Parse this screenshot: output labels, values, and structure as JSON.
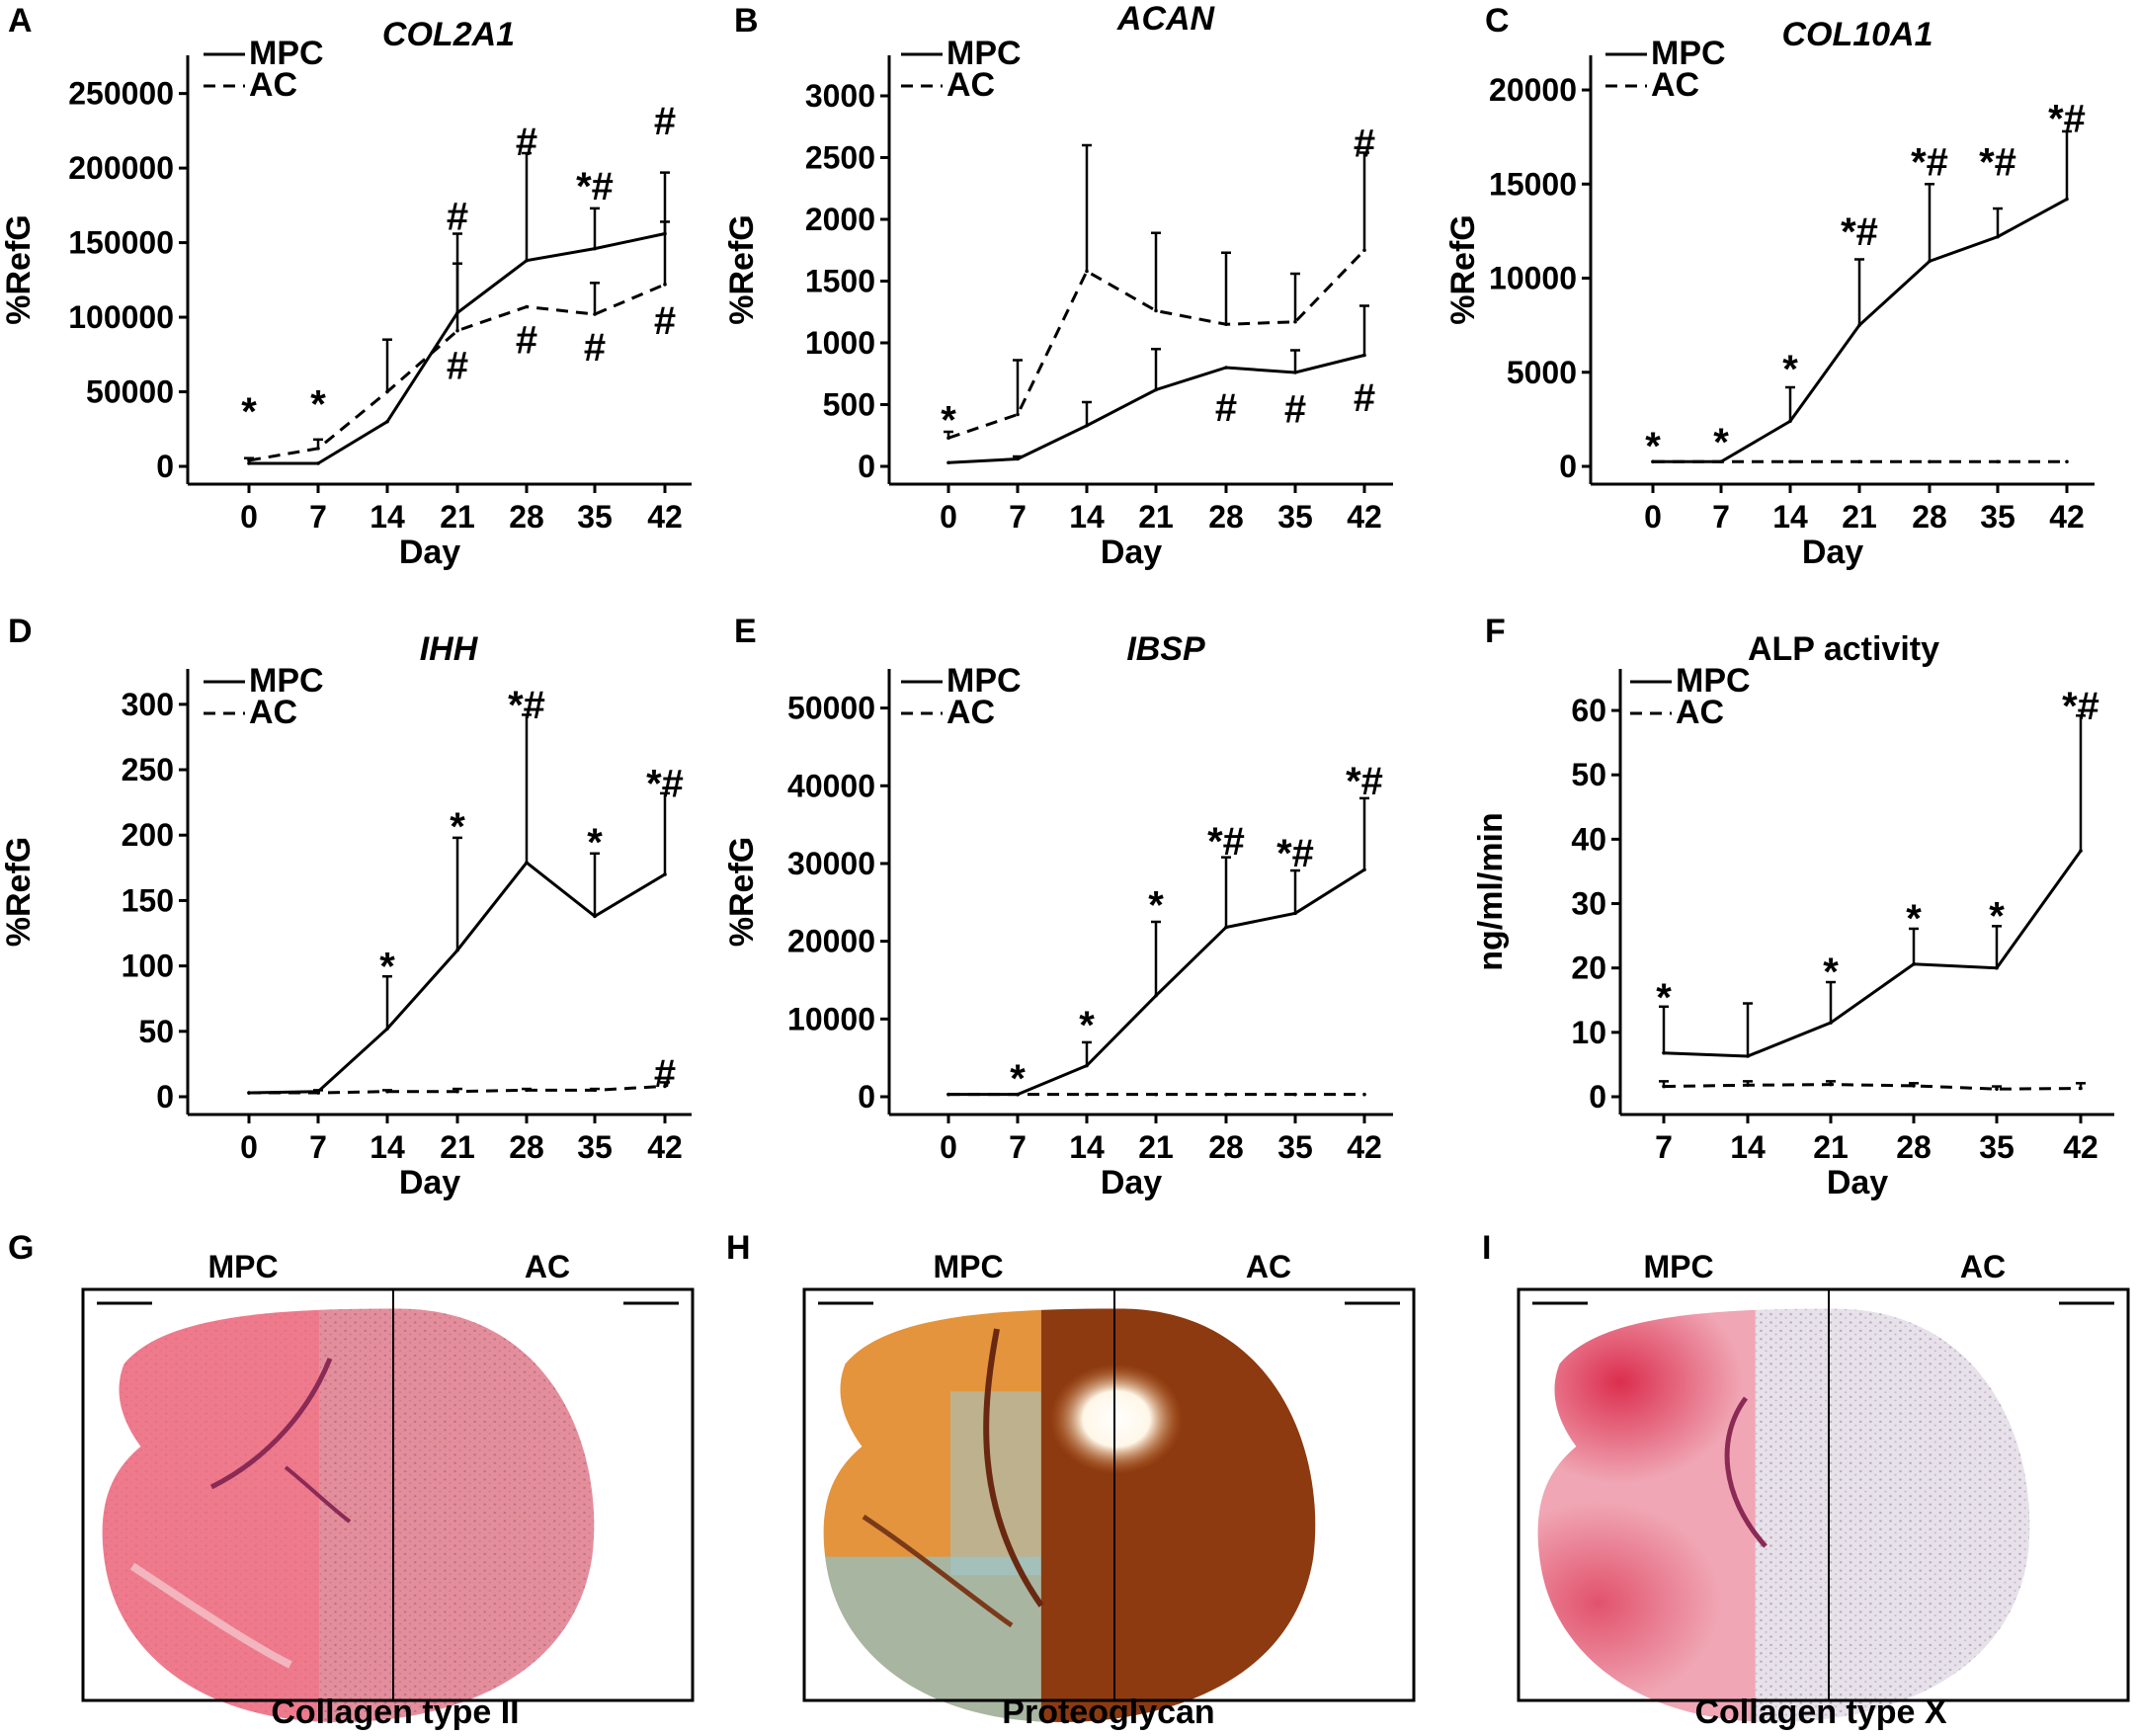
{
  "colors": {
    "line": "#000000",
    "background": "#ffffff",
    "stain_red": "#e8566e",
    "stain_orange": "#d98a2e",
    "stain_brown": "#8a3a12",
    "stain_blue": "#6fb3c6",
    "stain_violet": "#b7a6c2"
  },
  "chart_data": [
    {
      "id": "A",
      "label": "A",
      "type": "line",
      "title": "COL2A1",
      "title_italic": true,
      "xlabel": "Day",
      "ylabel": "%RefG",
      "categories": [
        "0",
        "7",
        "14",
        "21",
        "28",
        "35",
        "42"
      ],
      "yticks": [
        "0",
        "50000",
        "100000",
        "150000",
        "200000",
        "250000"
      ],
      "ylim": [
        0,
        265000
      ],
      "legend": [
        "MPC",
        "AC"
      ],
      "series": [
        {
          "name": "MPC",
          "style": "solid",
          "values": [
            2000,
            2000,
            30000,
            103000,
            138000,
            146000,
            156000
          ],
          "err": [
            0,
            0,
            0,
            53000,
            72000,
            27000,
            41000
          ]
        },
        {
          "name": "AC",
          "style": "dashed",
          "values": [
            4000,
            12000,
            50000,
            91000,
            107000,
            102000,
            122000
          ],
          "err": [
            1500,
            6000,
            35000,
            45000,
            0,
            21000,
            42000
          ]
        }
      ],
      "marks": [
        {
          "x": "0",
          "y": 37000,
          "text": "*"
        },
        {
          "x": "7",
          "y": 42000,
          "text": "*"
        },
        {
          "x": "21",
          "y": 168000,
          "text": "#"
        },
        {
          "x": "28",
          "y": 218000,
          "text": "#"
        },
        {
          "x": "35",
          "y": 188000,
          "text": "*#"
        },
        {
          "x": "42",
          "y": 232000,
          "text": "#"
        },
        {
          "x": "21",
          "y": 68000,
          "text": "#"
        },
        {
          "x": "28",
          "y": 85000,
          "text": "#"
        },
        {
          "x": "35",
          "y": 80000,
          "text": "#"
        },
        {
          "x": "42",
          "y": 98000,
          "text": "#"
        }
      ]
    },
    {
      "id": "B",
      "label": "B",
      "type": "line",
      "title": "ACAN",
      "title_italic": true,
      "xlabel": "Day",
      "ylabel": "%RefG",
      "categories": [
        "0",
        "7",
        "14",
        "21",
        "28",
        "35",
        "42"
      ],
      "yticks": [
        "0",
        "500",
        "1000",
        "1500",
        "2000",
        "2500",
        "3000"
      ],
      "ylim": [
        0,
        3200
      ],
      "legend": [
        "MPC",
        "AC"
      ],
      "series": [
        {
          "name": "MPC",
          "style": "solid",
          "values": [
            30,
            60,
            330,
            620,
            800,
            760,
            900
          ],
          "err": [
            0,
            20,
            190,
            330,
            0,
            180,
            400
          ]
        },
        {
          "name": "AC",
          "style": "dashed",
          "values": [
            230,
            420,
            1580,
            1260,
            1150,
            1170,
            1750
          ],
          "err": [
            50,
            440,
            1020,
            630,
            580,
            390,
            790
          ]
        }
      ],
      "marks": [
        {
          "x": "0",
          "y": 380,
          "text": "*"
        },
        {
          "x": "42",
          "y": 2620,
          "text": "#"
        },
        {
          "x": "28",
          "y": 480,
          "text": "#"
        },
        {
          "x": "35",
          "y": 470,
          "text": "#"
        },
        {
          "x": "42",
          "y": 560,
          "text": "#"
        }
      ]
    },
    {
      "id": "C",
      "label": "C",
      "type": "line",
      "title": "COL10A1",
      "title_italic": true,
      "xlabel": "Day",
      "ylabel": "%RefG",
      "categories": [
        "0",
        "7",
        "14",
        "21",
        "28",
        "35",
        "42"
      ],
      "yticks": [
        "0",
        "5000",
        "10000",
        "15000",
        "20000"
      ],
      "ylim": [
        0,
        21000
      ],
      "legend": [
        "MPC",
        "AC"
      ],
      "series": [
        {
          "name": "MPC",
          "style": "solid",
          "values": [
            250,
            250,
            2400,
            7500,
            10900,
            12200,
            14200
          ],
          "err": [
            0,
            0,
            1800,
            3500,
            4100,
            1500,
            3600
          ]
        },
        {
          "name": "AC",
          "style": "dashed",
          "values": [
            250,
            250,
            250,
            250,
            250,
            250,
            250
          ],
          "err": [
            0,
            0,
            0,
            0,
            0,
            0,
            0
          ]
        }
      ],
      "marks": [
        {
          "x": "0",
          "y": 1100,
          "text": "*"
        },
        {
          "x": "7",
          "y": 1300,
          "text": "*"
        },
        {
          "x": "14",
          "y": 5200,
          "text": "*"
        },
        {
          "x": "21",
          "y": 12500,
          "text": "*#"
        },
        {
          "x": "28",
          "y": 16200,
          "text": "*#"
        },
        {
          "x": "35",
          "y": 16200,
          "text": "*#"
        },
        {
          "x": "42",
          "y": 18500,
          "text": "*#"
        }
      ]
    },
    {
      "id": "D",
      "label": "D",
      "type": "line",
      "title": "IHH",
      "title_italic": true,
      "xlabel": "Day",
      "ylabel": "%RefG",
      "categories": [
        "0",
        "7",
        "14",
        "21",
        "28",
        "35",
        "42"
      ],
      "yticks": [
        "0",
        "50",
        "100",
        "150",
        "200",
        "250",
        "300"
      ],
      "ylim": [
        0,
        315
      ],
      "legend": [
        "MPC",
        "AC"
      ],
      "series": [
        {
          "name": "MPC",
          "style": "solid",
          "values": [
            3,
            4,
            52,
            112,
            179,
            138,
            170
          ],
          "err": [
            0,
            0,
            40,
            86,
            113,
            48,
            62
          ]
        },
        {
          "name": "AC",
          "style": "dashed",
          "values": [
            3,
            3,
            4,
            4,
            5,
            5,
            8
          ],
          "err": [
            0,
            2,
            1,
            2,
            1,
            1,
            3
          ]
        }
      ],
      "marks": [
        {
          "x": "14",
          "y": 100,
          "text": "*"
        },
        {
          "x": "21",
          "y": 207,
          "text": "*"
        },
        {
          "x": "28",
          "y": 300,
          "text": "*#"
        },
        {
          "x": "35",
          "y": 195,
          "text": "*"
        },
        {
          "x": "42",
          "y": 240,
          "text": "*#"
        },
        {
          "x": "42",
          "y": 18,
          "text": "#"
        }
      ]
    },
    {
      "id": "E",
      "label": "E",
      "type": "line",
      "title": "IBSP",
      "title_italic": true,
      "xlabel": "Day",
      "ylabel": "%RefG",
      "categories": [
        "0",
        "7",
        "14",
        "21",
        "28",
        "35",
        "42"
      ],
      "yticks": [
        "0",
        "10000",
        "20000",
        "30000",
        "40000",
        "50000"
      ],
      "ylim": [
        0,
        53000
      ],
      "legend": [
        "MPC",
        "AC"
      ],
      "series": [
        {
          "name": "MPC",
          "style": "solid",
          "values": [
            300,
            300,
            4000,
            13000,
            21800,
            23600,
            29200
          ],
          "err": [
            0,
            0,
            3000,
            9500,
            9000,
            5500,
            9200
          ]
        },
        {
          "name": "AC",
          "style": "dashed",
          "values": [
            300,
            300,
            300,
            300,
            300,
            300,
            300
          ],
          "err": [
            0,
            0,
            0,
            0,
            0,
            0,
            0
          ]
        }
      ],
      "marks": [
        {
          "x": "7",
          "y": 2400,
          "text": "*"
        },
        {
          "x": "14",
          "y": 9300,
          "text": "*"
        },
        {
          "x": "21",
          "y": 24700,
          "text": "*"
        },
        {
          "x": "28",
          "y": 32900,
          "text": "*#"
        },
        {
          "x": "35",
          "y": 31400,
          "text": "*#"
        },
        {
          "x": "42",
          "y": 40700,
          "text": "*#"
        }
      ]
    },
    {
      "id": "F",
      "label": "F",
      "type": "line",
      "title": "ALP activity",
      "title_italic": false,
      "xlabel": "Day",
      "ylabel": "ng/ml/min",
      "categories": [
        "7",
        "14",
        "21",
        "28",
        "35",
        "42"
      ],
      "yticks": [
        "0",
        "10",
        "20",
        "30",
        "40",
        "50",
        "60"
      ],
      "ylim": [
        0,
        64
      ],
      "legend": [
        "MPC",
        "AC"
      ],
      "series": [
        {
          "name": "MPC",
          "style": "solid",
          "values": [
            6.8,
            6.3,
            11.5,
            20.6,
            20.0,
            38.2
          ],
          "err": [
            7.2,
            8.2,
            6.3,
            5.5,
            6.5,
            21.0
          ]
        },
        {
          "name": "AC",
          "style": "dashed",
          "values": [
            1.6,
            1.8,
            1.9,
            1.7,
            1.2,
            1.3
          ],
          "err": [
            0.8,
            0.6,
            0.5,
            0.4,
            0.4,
            0.8
          ]
        }
      ],
      "marks": [
        {
          "x": "7",
          "y": 15.5,
          "text": "*"
        },
        {
          "x": "21",
          "y": 19.5,
          "text": "*"
        },
        {
          "x": "28",
          "y": 27.8,
          "text": "*"
        },
        {
          "x": "35",
          "y": 28.2,
          "text": "*"
        },
        {
          "x": "42",
          "y": 60.8,
          "text": "*#"
        }
      ]
    }
  ],
  "histology": [
    {
      "label": "G",
      "left_title": "MPC",
      "right_title": "AC",
      "caption": "Collagen type II"
    },
    {
      "label": "H",
      "left_title": "MPC",
      "right_title": "AC",
      "caption": "Proteoglycan"
    },
    {
      "label": "I",
      "left_title": "MPC",
      "right_title": "AC",
      "caption": "Collagen type X"
    }
  ]
}
